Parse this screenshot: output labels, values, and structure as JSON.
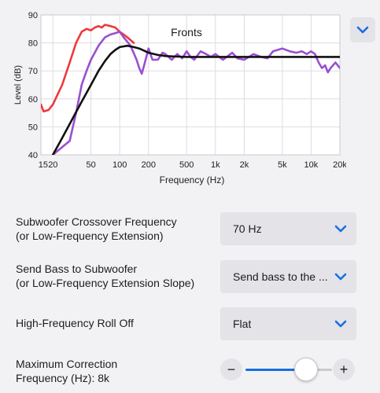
{
  "chart_data": {
    "type": "line",
    "title": "Fronts",
    "xlabel": "Frequency (Hz)",
    "ylabel": "Level (dB)",
    "x_scale": "log",
    "xlim": [
      15,
      20000
    ],
    "ylim": [
      40,
      90
    ],
    "grid": true,
    "x_ticks": [
      15,
      20,
      50,
      100,
      200,
      500,
      1000,
      2000,
      5000,
      10000,
      20000
    ],
    "x_tick_labels": [
      "15",
      "20",
      "50",
      "100",
      "200",
      "500",
      "1k",
      "2k",
      "5k",
      "10k",
      "20k"
    ],
    "y_ticks": [
      40,
      50,
      60,
      70,
      80,
      90
    ],
    "y_tick_labels": [
      "40",
      "50",
      "60",
      "70",
      "80",
      "90"
    ],
    "colors": {
      "red": "#f0373b",
      "purple": "#9a4fd0",
      "black": "#111111"
    },
    "series": [
      {
        "color": "#f0373b",
        "x": [
          15,
          16,
          18,
          20,
          25,
          30,
          35,
          40,
          45,
          50,
          55,
          60,
          65,
          70,
          80,
          90,
          100,
          110,
          120,
          130,
          140
        ],
        "y": [
          58,
          55.5,
          56,
          58,
          65,
          73,
          80,
          84,
          85,
          84.5,
          85.5,
          86,
          85.5,
          86.5,
          86,
          85.5,
          84,
          83,
          82,
          81,
          80
        ]
      },
      {
        "color": "#9a4fd0",
        "x": [
          20,
          30,
          35,
          40,
          45,
          50,
          60,
          70,
          80,
          90,
          100,
          110,
          130,
          150,
          160,
          170,
          180,
          200,
          220,
          250,
          280,
          300,
          350,
          400,
          450,
          500,
          550,
          600,
          700,
          800,
          900,
          1000,
          1200,
          1500,
          1700,
          2000,
          2500,
          3000,
          3500,
          4000,
          5000,
          6000,
          7000,
          8000,
          9000,
          10000,
          11000,
          12000,
          13000,
          14000,
          15000,
          16000,
          18000,
          20000
        ],
        "y": [
          40,
          45,
          55,
          65,
          70,
          74,
          79,
          82,
          83,
          83.5,
          84,
          82,
          79,
          74,
          71,
          69,
          72,
          78,
          74,
          74,
          76.5,
          76,
          74,
          76,
          74.5,
          77,
          75,
          74,
          77,
          76,
          75,
          76,
          74,
          76.5,
          74.5,
          74,
          76,
          75,
          74.5,
          77,
          78,
          77,
          76.5,
          77,
          76,
          77,
          76,
          73,
          71,
          72,
          69.5,
          71,
          73,
          71
        ]
      },
      {
        "color": "#111111",
        "x": [
          20,
          25,
          30,
          40,
          50,
          60,
          70,
          80,
          90,
          100,
          120,
          140,
          160,
          200,
          250,
          300,
          400,
          500,
          700,
          1000,
          2000,
          5000,
          10000,
          20000
        ],
        "y": [
          40,
          46,
          51,
          59,
          65,
          70,
          73.5,
          76,
          77.5,
          78.5,
          79,
          78.5,
          78,
          76.5,
          75.7,
          75.3,
          75.1,
          75,
          75,
          75,
          75,
          75,
          75,
          75
        ]
      }
    ]
  },
  "settings": {
    "crossover": {
      "label_line1": "Subwoofer Crossover Frequency",
      "label_line2": "(or Low-Frequency Extension)",
      "value": "70 Hz"
    },
    "send_bass": {
      "label_line1": "Send Bass to Subwoofer",
      "label_line2": "(or Low-Frequency Extension Slope)",
      "value": "Send bass to the ..."
    },
    "hf_rolloff": {
      "label": "High-Frequency Roll Off",
      "value": "Flat"
    },
    "max_correction": {
      "label_line1": "Maximum Correction",
      "label_line2": "Frequency (Hz): 8k",
      "minus_symbol": "−",
      "plus_symbol": "+",
      "slider_fraction": 0.7
    }
  },
  "accent_color": "#1a6fe0",
  "icons": {
    "collapse": "chevron-down-icon",
    "select_chevron": "chevron-down-icon",
    "decrement": "minus-icon",
    "increment": "plus-icon"
  }
}
